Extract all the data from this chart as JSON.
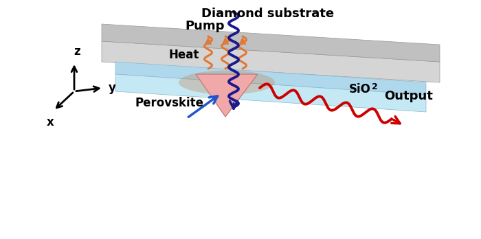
{
  "bg_color": "#ffffff",
  "sio2_top_color": "#c5e8f5",
  "sio2_front_color": "#b0d8ec",
  "sio2_right_color": "#a0c8e0",
  "diamond_top_color": "#d5d5d5",
  "diamond_front_color": "#c0c0c0",
  "diamond_right_color": "#b0b0b0",
  "triangle_color": "#f0a8a8",
  "triangle_edge": "#c08080",
  "pump_color": "#1a1a8c",
  "output_color": "#cc0000",
  "heat_color": "#e07838",
  "blue_arrow_color": "#2255cc",
  "label_pump": "Pump",
  "label_output": "Output",
  "label_perovskite": "Perovskite",
  "label_heat": "Heat",
  "label_diamond": "Diamond substrate",
  "label_x": "x",
  "label_y": "y",
  "label_z": "z"
}
